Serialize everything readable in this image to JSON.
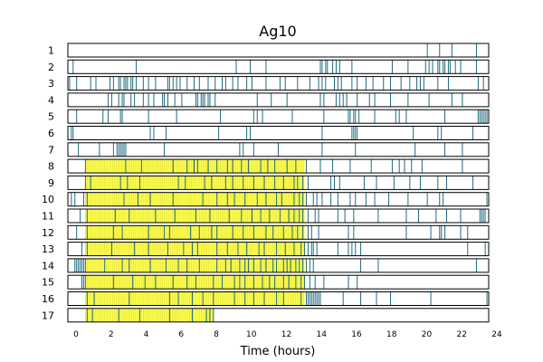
{
  "chart_data": {
    "type": "raster",
    "title": "Ag10",
    "xlabel": "Time (hours)",
    "xlim": [
      0,
      24
    ],
    "xticks": [
      0,
      2,
      4,
      6,
      8,
      10,
      12,
      14,
      16,
      18,
      20,
      22,
      24
    ],
    "grid": false,
    "colors": {
      "event": "#1f6b82",
      "highlight": "#ffff4d",
      "frame": "#000000"
    },
    "rows": [
      {
        "label": "1",
        "events": [
          20.5,
          21.2,
          21.9,
          23.3
        ],
        "highlight": null
      },
      {
        "label": "2",
        "events": [
          0.3,
          3.9,
          9.6,
          10.4,
          11.3,
          14.4,
          14.5,
          14.7,
          14.8,
          15.1,
          15.3,
          15.5,
          16.2,
          18.5,
          19.4,
          20.4,
          20.6,
          20.8,
          21.1,
          21.2,
          21.4,
          21.5,
          21.7,
          21.8,
          22.1,
          22.4,
          23.3
        ],
        "highlight": null
      },
      {
        "label": "3",
        "events": [
          0.1,
          0.5,
          1.3,
          1.6,
          2.4,
          2.6,
          2.9,
          3.0,
          3.2,
          3.3,
          3.4,
          3.6,
          3.7,
          3.9,
          4.3,
          4.6,
          5.0,
          5.7,
          5.8,
          6.0,
          6.2,
          6.4,
          6.8,
          7.2,
          7.5,
          8.0,
          8.4,
          8.8,
          9.0,
          9.4,
          9.7,
          10.2,
          10.5,
          11.3,
          12.1,
          12.4,
          13.1,
          13.8,
          14.3,
          14.5,
          14.7,
          15.2,
          15.4,
          15.6,
          16.2,
          16.5,
          17.0,
          17.4,
          18.0,
          18.4,
          19.0,
          19.5,
          19.9,
          20.1,
          20.3,
          21.1,
          21.7,
          23.4,
          23.7
        ],
        "highlight": null
      },
      {
        "label": "4",
        "events": [
          2.3,
          2.5,
          2.9,
          3.1,
          3.2,
          3.6,
          3.8,
          4.3,
          4.6,
          4.9,
          5.4,
          5.5,
          5.7,
          6.1,
          6.5,
          7.3,
          7.4,
          7.6,
          7.7,
          7.8,
          8.0,
          8.1,
          8.4,
          10.8,
          11.6,
          12.5,
          14.4,
          14.6,
          15.3,
          15.5,
          15.7,
          15.9,
          16.5,
          17.2,
          17.5,
          18.4,
          19.4,
          20.6,
          21.9,
          22.5
        ],
        "highlight": null
      },
      {
        "label": "5",
        "events": [
          0.5,
          2.0,
          2.3,
          3.0,
          3.1,
          4.6,
          6.2,
          8.7,
          10.6,
          10.8,
          11.1,
          12.8,
          14.6,
          16.0,
          16.1,
          16.3,
          16.4,
          16.6,
          17.5,
          18.7,
          18.9,
          19.3,
          21.5,
          23.4,
          23.5,
          23.6,
          23.7,
          23.8,
          23.9
        ],
        "highlight": null
      },
      {
        "label": "6",
        "events": [
          0.2,
          0.3,
          4.7,
          4.9,
          5.6,
          8.6,
          10.2,
          10.4,
          14.5,
          16.2,
          16.3,
          16.4,
          16.5,
          19.7,
          21.1,
          21.3,
          23.1
        ],
        "highlight": null
      },
      {
        "label": "7",
        "events": [
          0.6,
          1.8,
          2.6,
          2.8,
          2.9,
          3.0,
          3.1,
          3.2,
          3.3,
          5.5,
          9.8,
          10.0,
          10.6,
          12.0,
          14.5,
          16.4,
          19.8,
          21.5,
          22.5
        ],
        "highlight": null
      },
      {
        "label": "8",
        "events": [
          1.0,
          3.3,
          4.2,
          6.0,
          6.8,
          7.2,
          7.4,
          8.0,
          8.5,
          9.1,
          9.4,
          9.9,
          10.3,
          11.0,
          11.4,
          11.8,
          12.5,
          13.0,
          13.6,
          14.4,
          15.1,
          16.1,
          17.3,
          18.5,
          18.9,
          19.2,
          19.6,
          20.2,
          22.5
        ],
        "highlight": [
          1.0,
          13.5
        ]
      },
      {
        "label": "9",
        "events": [
          1.0,
          1.3,
          3.0,
          3.4,
          4.1,
          6.3,
          6.7,
          7.8,
          8.2,
          9.0,
          9.4,
          10.0,
          10.6,
          11.2,
          11.8,
          12.3,
          12.9,
          13.1,
          13.4,
          13.7,
          15.0,
          15.2,
          15.5,
          16.9,
          17.6,
          18.6,
          19.5,
          20.1,
          21.1,
          21.6,
          23.1
        ],
        "highlight": [
          1.0,
          13.5
        ]
      },
      {
        "label": "10",
        "events": [
          0.2,
          0.4,
          0.9,
          1.1,
          3.2,
          4.0,
          4.7,
          6.0,
          7.7,
          8.5,
          9.1,
          9.5,
          10.1,
          10.8,
          11.3,
          11.9,
          12.2,
          12.9,
          13.2,
          13.4,
          13.6,
          14.0,
          14.2,
          14.5,
          15.0,
          15.4,
          16.1,
          16.4,
          17.0,
          17.5,
          18.3,
          19.4,
          20.5,
          21.2,
          21.4,
          23.9
        ],
        "highlight": [
          1.0,
          13.5
        ]
      },
      {
        "label": "11",
        "events": [
          0.7,
          1.1,
          2.7,
          3.5,
          5.0,
          6.1,
          7.3,
          8.1,
          9.2,
          9.9,
          10.5,
          11.0,
          11.5,
          12.1,
          12.6,
          12.9,
          13.2,
          13.4,
          13.7,
          14.1,
          14.3,
          15.4,
          15.8,
          16.3,
          17.7,
          19.3,
          20.0,
          21.0,
          21.6,
          22.4,
          23.5,
          23.6,
          23.7,
          23.8
        ],
        "highlight": [
          1.0,
          13.5
        ]
      },
      {
        "label": "12",
        "events": [
          0.5,
          1.1,
          2.6,
          3.1,
          4.6,
          5.5,
          5.8,
          7.0,
          7.5,
          8.2,
          8.5,
          9.4,
          10.0,
          10.6,
          11.3,
          11.7,
          12.3,
          12.8,
          13.1,
          13.4,
          13.7,
          13.9,
          14.3,
          16.0,
          16.3,
          19.3,
          20.7,
          21.2,
          21.3,
          21.5,
          22.4,
          22.8
        ],
        "highlight": [
          1.0,
          13.5
        ]
      },
      {
        "label": "13",
        "events": [
          0.8,
          1.1,
          2.5,
          3.8,
          4.6,
          5.7,
          6.6,
          7.1,
          7.4,
          8.5,
          9.1,
          9.7,
          10.2,
          10.9,
          11.2,
          11.9,
          12.4,
          12.9,
          13.3,
          13.5,
          13.7,
          13.9,
          14.0,
          14.2,
          15.4,
          16.0,
          16.2,
          16.4,
          16.7,
          22.8,
          23.8
        ],
        "highlight": [
          1.0,
          13.5
        ]
      },
      {
        "label": "14",
        "events": [
          0.4,
          0.5,
          0.6,
          0.7,
          0.8,
          0.9,
          1.0,
          2.1,
          3.1,
          3.5,
          4.7,
          5.6,
          6.3,
          6.8,
          7.5,
          8.5,
          9.0,
          9.3,
          9.8,
          10.1,
          10.3,
          10.6,
          11.0,
          11.3,
          11.7,
          11.9,
          12.3,
          12.5,
          12.7,
          13.0,
          13.2,
          13.4,
          13.6,
          13.8,
          14.0,
          16.7,
          17.7,
          23.3
        ],
        "highlight": [
          1.0,
          13.5
        ]
      },
      {
        "label": "15",
        "events": [
          0.8,
          0.9,
          1.0,
          2.6,
          3.7,
          4.4,
          5.0,
          6.0,
          6.8,
          7.3,
          8.3,
          8.8,
          9.5,
          9.8,
          10.1,
          10.6,
          11.1,
          11.5,
          11.8,
          12.3,
          12.6,
          13.0,
          13.3,
          13.5,
          13.8,
          14.1,
          14.6,
          16.0,
          16.5
        ],
        "highlight": [
          1.0,
          13.5
        ]
      },
      {
        "label": "16",
        "events": [
          1.1,
          1.5,
          3.5,
          5.8,
          6.3,
          7.1,
          7.7,
          8.3,
          9.5,
          10.1,
          10.6,
          11.2,
          11.9,
          12.3,
          13.3,
          13.6,
          13.7,
          13.8,
          13.9,
          14.0,
          14.1,
          14.2,
          14.3,
          14.4,
          15.7,
          16.7,
          17.6,
          18.4,
          20.7,
          23.9
        ],
        "highlight": [
          1.0,
          13.5
        ]
      },
      {
        "label": "17",
        "events": [
          1.1,
          1.4,
          2.9,
          4.1,
          5.8,
          7.1,
          7.9,
          8.1,
          8.3
        ],
        "highlight": [
          1.0,
          8.3
        ]
      }
    ]
  }
}
